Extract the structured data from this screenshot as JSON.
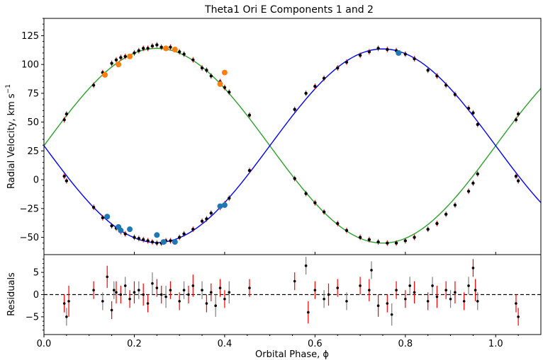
{
  "chart_data": {
    "type": "scatter",
    "title": "Theta1 Ori E Components 1 and 2",
    "xlabel": "Orbital Phase, ϕ",
    "ylabel_top_main": "Radial Velocity, km s",
    "ylabel_top_exp": "−1",
    "ylabel_bottom": "Residuals",
    "xlim": [
      0.0,
      1.1
    ],
    "ylim_top": [
      -65,
      140
    ],
    "ylim_bottom": [
      -9,
      9
    ],
    "xticks": [
      0.0,
      0.2,
      0.4,
      0.6,
      0.8,
      1.0
    ],
    "xtick_labels": [
      "0.0",
      "0.2",
      "0.4",
      "0.6",
      "0.8",
      "1.0"
    ],
    "yticks_top": [
      -50,
      -25,
      0,
      25,
      50,
      75,
      100,
      125
    ],
    "ytick_labels_top": [
      "−50",
      "−25",
      "0",
      "25",
      "50",
      "75",
      "100",
      "125"
    ],
    "yticks_bottom": [
      -5,
      0,
      5
    ],
    "ytick_labels_bottom": [
      "−5",
      "0",
      "5"
    ],
    "model": {
      "gamma": 29.5,
      "component1": {
        "color": "#2ca02c",
        "K": 84.5,
        "phase_of_max": 0.25
      },
      "component2": {
        "color": "#0000ff",
        "K": 84.0,
        "phase_of_max": 0.75
      }
    },
    "colors": {
      "component1_curve": "#2ca02c",
      "component2_curve": "#0000ff",
      "orange_points": "#ff7f0e",
      "blue_points": "#1f77b4",
      "data_points": "#000000",
      "residual_errorbar_red": "#ff0000",
      "residual_errorbar_gray": "#808080"
    },
    "series_orange_comp1": {
      "x": [
        0.135,
        0.165,
        0.19,
        0.27,
        0.29,
        0.39,
        0.4
      ],
      "y": [
        91,
        100,
        107,
        114,
        113,
        83,
        93
      ]
    },
    "series_blue_comp2": {
      "x": [
        0.14,
        0.165,
        0.17,
        0.19,
        0.25,
        0.265,
        0.29,
        0.39,
        0.4,
        0.785
      ],
      "y": [
        -32,
        -41,
        -44,
        -43,
        -48,
        -54,
        -54,
        -23,
        -22,
        110
      ]
    },
    "series_black_comp1": {
      "x": [
        0.045,
        0.05,
        0.11,
        0.13,
        0.15,
        0.16,
        0.17,
        0.18,
        0.2,
        0.21,
        0.22,
        0.23,
        0.24,
        0.25,
        0.26,
        0.27,
        0.28,
        0.3,
        0.31,
        0.33,
        0.35,
        0.36,
        0.37,
        0.39,
        0.4,
        0.41,
        0.455,
        0.555,
        0.58,
        0.6,
        0.62,
        0.65,
        0.67,
        0.7,
        0.72,
        0.74,
        0.76,
        0.78,
        0.8,
        0.82,
        0.85,
        0.87,
        0.89,
        0.91,
        0.94,
        0.95,
        0.96,
        1.045,
        1.05
      ],
      "y": [
        52,
        57,
        82,
        93,
        101,
        104,
        106,
        107,
        110,
        112,
        114,
        114,
        116,
        117,
        115,
        114,
        115,
        111,
        109,
        104,
        97,
        95,
        90,
        85,
        80,
        76,
        56,
        1,
        -12,
        -20,
        -28,
        -38,
        -44,
        -50,
        -52,
        -54,
        -55,
        -55,
        -53,
        -50,
        -43,
        -38,
        -30,
        -22,
        -10,
        -3,
        5,
        52,
        57
      ]
    },
    "series_black_comp2": {
      "x": [
        0.045,
        0.05,
        0.11,
        0.13,
        0.15,
        0.16,
        0.17,
        0.18,
        0.2,
        0.21,
        0.22,
        0.23,
        0.24,
        0.25,
        0.26,
        0.27,
        0.28,
        0.3,
        0.31,
        0.33,
        0.35,
        0.36,
        0.37,
        0.39,
        0.4,
        0.41,
        0.455,
        0.555,
        0.58,
        0.6,
        0.62,
        0.65,
        0.67,
        0.7,
        0.72,
        0.74,
        0.76,
        0.78,
        0.8,
        0.82,
        0.85,
        0.87,
        0.89,
        0.91,
        0.94,
        0.95,
        0.96,
        1.045,
        1.05
      ],
      "y": [
        3,
        -1,
        -24,
        -33,
        -40,
        -42,
        -45,
        -47,
        -50,
        -51,
        -52,
        -53,
        -54,
        -55,
        -55,
        -53,
        -53,
        -50,
        -47,
        -43,
        -36,
        -34,
        -29,
        -24,
        -21,
        -16,
        8,
        61,
        75,
        81,
        88,
        97,
        102,
        108,
        111,
        114,
        113,
        112,
        109,
        105,
        95,
        90,
        82,
        74,
        62,
        58,
        48,
        3,
        -1
      ]
    },
    "residuals": {
      "x": [
        0.045,
        0.05,
        0.055,
        0.11,
        0.13,
        0.14,
        0.15,
        0.155,
        0.16,
        0.17,
        0.18,
        0.19,
        0.2,
        0.21,
        0.22,
        0.23,
        0.24,
        0.25,
        0.26,
        0.27,
        0.28,
        0.3,
        0.31,
        0.32,
        0.33,
        0.35,
        0.36,
        0.37,
        0.38,
        0.39,
        0.4,
        0.41,
        0.455,
        0.555,
        0.58,
        0.585,
        0.6,
        0.62,
        0.63,
        0.65,
        0.67,
        0.7,
        0.72,
        0.725,
        0.74,
        0.76,
        0.77,
        0.78,
        0.8,
        0.81,
        0.82,
        0.85,
        0.86,
        0.87,
        0.89,
        0.9,
        0.91,
        0.93,
        0.94,
        0.95,
        0.955,
        0.96,
        1.045,
        1.05
      ],
      "y": [
        -2.0,
        -5.0,
        -1.5,
        1.0,
        -1.5,
        4.0,
        -3.5,
        1.0,
        0.5,
        0.0,
        2.0,
        -1.0,
        0.5,
        1.0,
        0.0,
        -2.0,
        2.5,
        1.5,
        0.0,
        -0.5,
        1.0,
        -1.5,
        1.0,
        0.0,
        2.0,
        1.0,
        -2.0,
        0.5,
        -2.5,
        1.5,
        -1.0,
        0.5,
        1.5,
        3.0,
        6.5,
        -4.0,
        1.0,
        -1.0,
        0.0,
        1.5,
        -1.5,
        2.0,
        1.0,
        5.5,
        -2.5,
        -2.0,
        -4.5,
        1.0,
        -1.0,
        2.0,
        0.5,
        -1.5,
        2.0,
        -0.5,
        1.0,
        -1.0,
        0.5,
        -1.5,
        2.0,
        6.0,
        1.0,
        -1.5,
        -2.0,
        -5.0
      ],
      "err": [
        2.0,
        2.0,
        3.5,
        2.0,
        2.0,
        2.5,
        2.0,
        2.0,
        2.5,
        2.0,
        2.0,
        2.0,
        2.5,
        2.0,
        2.5,
        2.0,
        2.5,
        2.0,
        2.0,
        2.5,
        2.0,
        2.0,
        2.0,
        2.0,
        2.5,
        2.0,
        2.0,
        2.0,
        2.5,
        2.0,
        2.0,
        2.5,
        2.0,
        2.0,
        2.0,
        2.5,
        2.0,
        2.0,
        2.5,
        2.0,
        2.0,
        2.0,
        2.5,
        2.0,
        2.5,
        2.0,
        2.5,
        2.0,
        2.0,
        2.0,
        2.5,
        2.0,
        2.0,
        2.5,
        2.0,
        2.0,
        2.5,
        2.0,
        2.0,
        2.0,
        2.5,
        2.0,
        2.0,
        2.0
      ]
    }
  }
}
